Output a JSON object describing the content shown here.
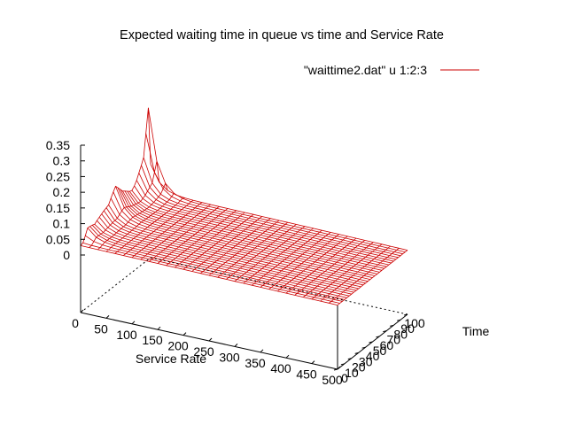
{
  "chart_data": {
    "type": "surface",
    "title": "Expected waiting time in queue vs time and Service Rate",
    "legend": {
      "label": "\"waittime2.dat\" u 1:2:3",
      "color": "#cc0000",
      "placement": "top-right"
    },
    "xlabel": "Service Rate",
    "ylabel": "Time",
    "zlabel": "",
    "x_ticks": [
      "0",
      "50",
      "100",
      "150",
      "200",
      "250",
      "300",
      "350",
      "400",
      "450",
      "500"
    ],
    "y_ticks": [
      "0",
      "10",
      "20",
      "30",
      "40",
      "50",
      "60",
      "70",
      "80",
      "90",
      "100"
    ],
    "z_ticks": [
      "0",
      "0.05",
      "0.1",
      "0.15",
      "0.2",
      "0.25",
      "0.3",
      "0.35"
    ],
    "xlim": [
      0,
      500
    ],
    "ylim": [
      0,
      100
    ],
    "zlim": [
      0,
      0.35
    ],
    "x_grid_count": 30,
    "y_grid_count": 30,
    "surface_description": "Waiting time near zero over most of the domain, with oscillating spikes along the low-service-rate edge (up to about 0.14 early in time, rising to about 0.35 peak near time ~95-100), decaying rapidly as service rate increases.",
    "edge_peaks": [
      {
        "time": 0,
        "value": 0.03
      },
      {
        "time": 10,
        "value": 0.09
      },
      {
        "time": 20,
        "value": 0.07
      },
      {
        "time": 30,
        "value": 0.08
      },
      {
        "time": 40,
        "value": 0.09
      },
      {
        "time": 50,
        "value": 0.14
      },
      {
        "time": 60,
        "value": 0.12
      },
      {
        "time": 70,
        "value": 0.12
      },
      {
        "time": 80,
        "value": 0.14
      },
      {
        "time": 90,
        "value": 0.18
      },
      {
        "time": 97,
        "value": 0.33
      },
      {
        "time": 100,
        "value": 0.12
      }
    ],
    "far_edge_level": 0.03,
    "grid": false
  }
}
